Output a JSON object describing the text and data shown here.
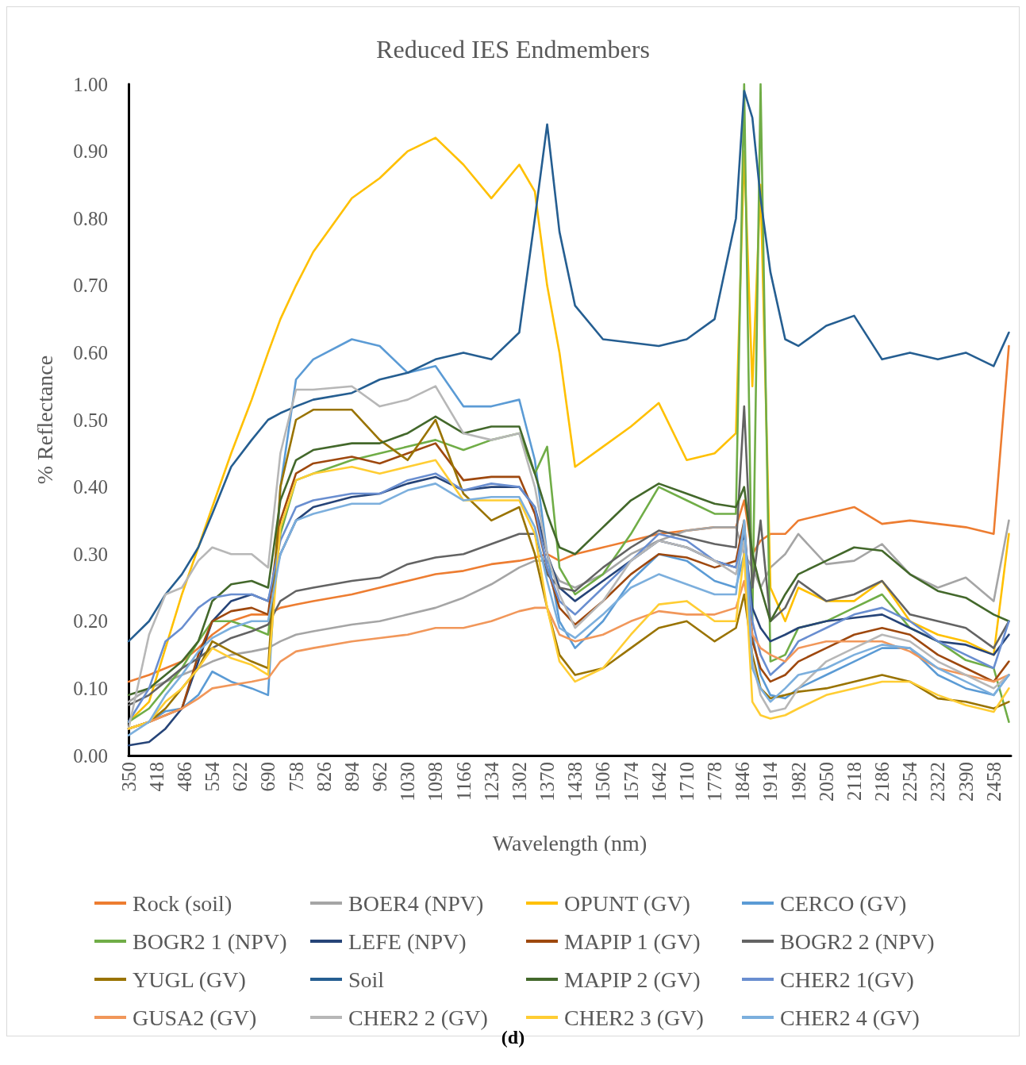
{
  "chart_data": {
    "type": "line",
    "title": "Reduced IES Endmembers",
    "xlabel": "Wavelength (nm)",
    "ylabel": "% Reflectance",
    "annotations": [
      "(d)"
    ],
    "x": [
      350,
      400,
      440,
      480,
      520,
      554,
      600,
      650,
      690,
      720,
      758,
      800,
      894,
      962,
      1030,
      1098,
      1166,
      1234,
      1302,
      1340,
      1370,
      1400,
      1438,
      1506,
      1574,
      1642,
      1710,
      1778,
      1830,
      1850,
      1870,
      1890,
      1914,
      1950,
      1982,
      2050,
      2118,
      2186,
      2254,
      2322,
      2390,
      2458,
      2495
    ],
    "xlim": [
      350,
      2500
    ],
    "xticks": [
      350,
      418,
      486,
      554,
      622,
      690,
      758,
      826,
      894,
      962,
      1030,
      1098,
      1166,
      1234,
      1302,
      1370,
      1438,
      1506,
      1574,
      1642,
      1710,
      1778,
      1846,
      1914,
      1982,
      2050,
      2118,
      2186,
      2254,
      2322,
      2390,
      2458
    ],
    "ylim": [
      0,
      1
    ],
    "yticks": [
      {
        "value": 0,
        "label": "0.00"
      },
      {
        "value": 0.1,
        "label": "0.10"
      },
      {
        "value": 0.2,
        "label": "0.20"
      },
      {
        "value": 0.3,
        "label": "0.30"
      },
      {
        "value": 0.4,
        "label": "0.40"
      },
      {
        "value": 0.5,
        "label": "0.50"
      },
      {
        "value": 0.6,
        "label": "0.60"
      },
      {
        "value": 0.7,
        "label": "0.70"
      },
      {
        "value": 0.8,
        "label": "0.80"
      },
      {
        "value": 0.9,
        "label": "0.90"
      },
      {
        "value": 1,
        "label": "1.00"
      }
    ],
    "grid": false,
    "legend": "bottom",
    "marker": "none",
    "line_style": "solid",
    "series": [
      {
        "name": "Rock (soil)",
        "color": "#ed7d31",
        "values": [
          0.11,
          0.12,
          0.13,
          0.14,
          0.16,
          0.18,
          0.2,
          0.21,
          0.21,
          0.22,
          0.225,
          0.23,
          0.24,
          0.25,
          0.26,
          0.27,
          0.275,
          0.285,
          0.29,
          0.295,
          0.3,
          0.29,
          0.3,
          0.31,
          0.32,
          0.33,
          0.335,
          0.34,
          0.34,
          0.38,
          0.3,
          0.32,
          0.33,
          0.33,
          0.35,
          0.36,
          0.37,
          0.345,
          0.35,
          0.345,
          0.34,
          0.33,
          0.61
        ]
      },
      {
        "name": "BOER4 (NPV)",
        "color": "#a5a5a5",
        "values": [
          0.08,
          0.1,
          0.11,
          0.12,
          0.13,
          0.14,
          0.15,
          0.155,
          0.16,
          0.17,
          0.18,
          0.185,
          0.195,
          0.2,
          0.21,
          0.22,
          0.235,
          0.255,
          0.28,
          0.29,
          0.29,
          0.26,
          0.25,
          0.27,
          0.3,
          0.32,
          0.335,
          0.34,
          0.34,
          0.3,
          0.28,
          0.25,
          0.28,
          0.3,
          0.33,
          0.285,
          0.29,
          0.315,
          0.27,
          0.25,
          0.265,
          0.23,
          0.35
        ]
      },
      {
        "name": "OPUNT (GV)",
        "color": "#ffc000",
        "values": [
          0.05,
          0.08,
          0.16,
          0.24,
          0.31,
          0.37,
          0.45,
          0.53,
          0.6,
          0.65,
          0.7,
          0.75,
          0.83,
          0.86,
          0.9,
          0.92,
          0.88,
          0.83,
          0.88,
          0.84,
          0.7,
          0.6,
          0.43,
          0.46,
          0.49,
          0.525,
          0.44,
          0.45,
          0.48,
          0.9,
          0.55,
          0.85,
          0.25,
          0.2,
          0.25,
          0.23,
          0.23,
          0.26,
          0.2,
          0.18,
          0.17,
          0.15,
          0.33
        ]
      },
      {
        "name": "CERCO (GV)",
        "color": "#5b9bd5",
        "values": [
          0.04,
          0.05,
          0.066,
          0.07,
          0.09,
          0.125,
          0.11,
          0.1,
          0.09,
          0.4,
          0.56,
          0.59,
          0.62,
          0.61,
          0.57,
          0.58,
          0.52,
          0.52,
          0.53,
          0.44,
          0.3,
          0.2,
          0.16,
          0.2,
          0.26,
          0.3,
          0.29,
          0.26,
          0.25,
          0.3,
          0.18,
          0.12,
          0.09,
          0.085,
          0.1,
          0.12,
          0.14,
          0.16,
          0.16,
          0.12,
          0.1,
          0.09,
          0.12
        ]
      },
      {
        "name": "BOGR2 1 (NPV)",
        "color": "#70ad47",
        "values": [
          0.05,
          0.07,
          0.1,
          0.13,
          0.17,
          0.2,
          0.2,
          0.19,
          0.18,
          0.33,
          0.41,
          0.42,
          0.44,
          0.45,
          0.46,
          0.47,
          0.455,
          0.47,
          0.48,
          0.42,
          0.46,
          0.28,
          0.24,
          0.27,
          0.33,
          0.4,
          0.38,
          0.36,
          0.36,
          1,
          0.2,
          1,
          0.14,
          0.15,
          0.19,
          0.2,
          0.22,
          0.24,
          0.19,
          0.17,
          0.142,
          0.13,
          0.05
        ]
      },
      {
        "name": "LEFE (NPV)",
        "color": "#264478",
        "values": [
          0.015,
          0.02,
          0.04,
          0.07,
          0.14,
          0.2,
          0.23,
          0.24,
          0.23,
          0.3,
          0.35,
          0.37,
          0.385,
          0.39,
          0.405,
          0.415,
          0.395,
          0.4,
          0.4,
          0.37,
          0.3,
          0.25,
          0.23,
          0.26,
          0.29,
          0.32,
          0.31,
          0.29,
          0.28,
          0.33,
          0.22,
          0.19,
          0.17,
          0.18,
          0.19,
          0.2,
          0.205,
          0.21,
          0.19,
          0.17,
          0.165,
          0.15,
          0.18
        ]
      },
      {
        "name": "MAPIP 1 (GV)",
        "color": "#9e480e",
        "values": [
          0.04,
          0.05,
          0.06,
          0.07,
          0.15,
          0.2,
          0.215,
          0.22,
          0.21,
          0.35,
          0.42,
          0.435,
          0.445,
          0.435,
          0.45,
          0.465,
          0.41,
          0.415,
          0.415,
          0.36,
          0.28,
          0.22,
          0.195,
          0.23,
          0.27,
          0.3,
          0.295,
          0.28,
          0.29,
          0.35,
          0.17,
          0.13,
          0.11,
          0.12,
          0.14,
          0.16,
          0.18,
          0.19,
          0.18,
          0.15,
          0.13,
          0.11,
          0.14
        ]
      },
      {
        "name": "BOGR2 2 (NPV)",
        "color": "#636363",
        "values": [
          0.075,
          0.09,
          0.11,
          0.13,
          0.145,
          0.16,
          0.175,
          0.185,
          0.195,
          0.23,
          0.245,
          0.25,
          0.26,
          0.265,
          0.285,
          0.295,
          0.3,
          0.315,
          0.33,
          0.33,
          0.27,
          0.25,
          0.245,
          0.28,
          0.31,
          0.335,
          0.325,
          0.315,
          0.31,
          0.52,
          0.25,
          0.35,
          0.2,
          0.22,
          0.26,
          0.23,
          0.24,
          0.26,
          0.21,
          0.2,
          0.19,
          0.16,
          0.2
        ]
      },
      {
        "name": "YUGL (GV)",
        "color": "#997300",
        "values": [
          0.04,
          0.05,
          0.07,
          0.1,
          0.13,
          0.17,
          0.155,
          0.14,
          0.13,
          0.4,
          0.5,
          0.515,
          0.515,
          0.47,
          0.44,
          0.5,
          0.39,
          0.35,
          0.37,
          0.3,
          0.22,
          0.15,
          0.12,
          0.13,
          0.16,
          0.19,
          0.2,
          0.17,
          0.19,
          0.24,
          0.15,
          0.1,
          0.085,
          0.09,
          0.095,
          0.1,
          0.11,
          0.12,
          0.11,
          0.085,
          0.08,
          0.07,
          0.08
        ]
      },
      {
        "name": "Soil",
        "color": "#255e91",
        "values": [
          0.17,
          0.2,
          0.24,
          0.27,
          0.31,
          0.36,
          0.43,
          0.47,
          0.5,
          0.51,
          0.52,
          0.53,
          0.54,
          0.56,
          0.57,
          0.59,
          0.6,
          0.59,
          0.63,
          0.8,
          0.94,
          0.78,
          0.67,
          0.62,
          0.615,
          0.61,
          0.62,
          0.65,
          0.8,
          0.99,
          0.95,
          0.83,
          0.72,
          0.62,
          0.61,
          0.64,
          0.655,
          0.59,
          0.6,
          0.59,
          0.6,
          0.58,
          0.63
        ]
      },
      {
        "name": "MAPIP 2 (GV)",
        "color": "#43682b",
        "values": [
          0.09,
          0.1,
          0.12,
          0.14,
          0.17,
          0.23,
          0.255,
          0.26,
          0.25,
          0.38,
          0.44,
          0.455,
          0.465,
          0.465,
          0.48,
          0.505,
          0.48,
          0.49,
          0.49,
          0.42,
          0.36,
          0.31,
          0.3,
          0.34,
          0.38,
          0.405,
          0.39,
          0.375,
          0.37,
          0.4,
          0.3,
          0.25,
          0.2,
          0.24,
          0.27,
          0.29,
          0.31,
          0.305,
          0.27,
          0.245,
          0.235,
          0.21,
          0.2
        ]
      },
      {
        "name": "CHER2 1(GV)",
        "color": "#698ed0",
        "values": [
          0.05,
          0.1,
          0.17,
          0.19,
          0.22,
          0.235,
          0.24,
          0.24,
          0.23,
          0.32,
          0.37,
          0.38,
          0.39,
          0.39,
          0.41,
          0.42,
          0.395,
          0.405,
          0.4,
          0.37,
          0.28,
          0.23,
          0.21,
          0.25,
          0.29,
          0.33,
          0.32,
          0.29,
          0.28,
          0.34,
          0.2,
          0.15,
          0.12,
          0.14,
          0.17,
          0.19,
          0.21,
          0.22,
          0.2,
          0.17,
          0.15,
          0.13,
          0.2
        ]
      },
      {
        "name": "GUSA2 (GV)",
        "color": "#f1975a",
        "values": [
          0.04,
          0.05,
          0.06,
          0.07,
          0.085,
          0.1,
          0.105,
          0.11,
          0.115,
          0.14,
          0.155,
          0.16,
          0.17,
          0.175,
          0.18,
          0.19,
          0.19,
          0.2,
          0.215,
          0.22,
          0.22,
          0.18,
          0.17,
          0.18,
          0.2,
          0.215,
          0.21,
          0.21,
          0.22,
          0.26,
          0.18,
          0.16,
          0.15,
          0.14,
          0.16,
          0.17,
          0.17,
          0.17,
          0.155,
          0.13,
          0.12,
          0.11,
          0.12
        ]
      },
      {
        "name": "CHER2 2 (GV)",
        "color": "#b7b7b7",
        "values": [
          0.04,
          0.18,
          0.24,
          0.25,
          0.29,
          0.31,
          0.3,
          0.3,
          0.28,
          0.45,
          0.545,
          0.545,
          0.55,
          0.52,
          0.53,
          0.55,
          0.48,
          0.47,
          0.48,
          0.4,
          0.3,
          0.24,
          0.19,
          0.23,
          0.29,
          0.32,
          0.31,
          0.29,
          0.27,
          0.32,
          0.14,
          0.09,
          0.065,
          0.07,
          0.1,
          0.14,
          0.16,
          0.18,
          0.17,
          0.14,
          0.12,
          0.1,
          0.12
        ]
      },
      {
        "name": "CHER2 3 (GV)",
        "color": "#ffcd33",
        "values": [
          0.04,
          0.05,
          0.08,
          0.1,
          0.13,
          0.16,
          0.145,
          0.135,
          0.12,
          0.34,
          0.41,
          0.42,
          0.43,
          0.42,
          0.43,
          0.44,
          0.38,
          0.38,
          0.38,
          0.33,
          0.22,
          0.14,
          0.11,
          0.13,
          0.18,
          0.225,
          0.23,
          0.2,
          0.2,
          0.3,
          0.08,
          0.06,
          0.055,
          0.06,
          0.07,
          0.09,
          0.1,
          0.11,
          0.11,
          0.09,
          0.075,
          0.065,
          0.1
        ]
      },
      {
        "name": "CHER2 4 (GV)",
        "color": "#7cafdd",
        "values": [
          0.03,
          0.05,
          0.09,
          0.12,
          0.155,
          0.175,
          0.19,
          0.2,
          0.2,
          0.3,
          0.35,
          0.36,
          0.375,
          0.375,
          0.395,
          0.405,
          0.38,
          0.385,
          0.385,
          0.34,
          0.26,
          0.19,
          0.175,
          0.21,
          0.25,
          0.27,
          0.255,
          0.24,
          0.24,
          0.35,
          0.13,
          0.1,
          0.08,
          0.1,
          0.12,
          0.13,
          0.15,
          0.165,
          0.16,
          0.13,
          0.11,
          0.09,
          0.12
        ]
      }
    ]
  }
}
